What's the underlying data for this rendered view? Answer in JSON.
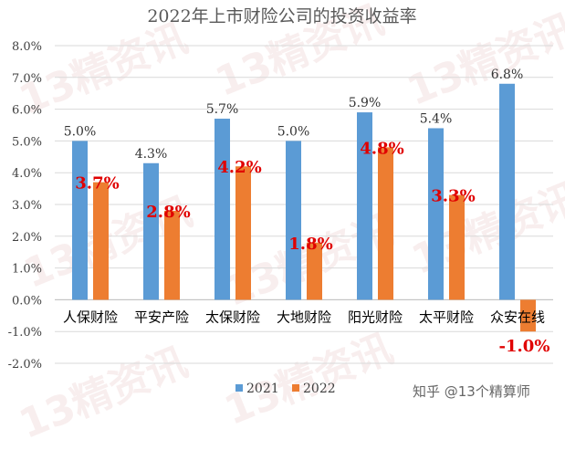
{
  "chart_data": {
    "type": "bar",
    "title": "2022年上市财险公司的投资收益率",
    "categories": [
      "人保财险",
      "平安产险",
      "太保财险",
      "大地财险",
      "阳光财险",
      "太平财险",
      "众安在线"
    ],
    "series": [
      {
        "name": "2021",
        "color": "#5b9bd5",
        "values": [
          5.0,
          4.3,
          5.7,
          5.0,
          5.9,
          5.4,
          6.8
        ],
        "labels": [
          "5.0%",
          "4.3%",
          "5.7%",
          "5.0%",
          "5.9%",
          "5.4%",
          "6.8%"
        ]
      },
      {
        "name": "2022",
        "color": "#ed7d31",
        "values": [
          3.7,
          2.8,
          4.2,
          1.8,
          4.8,
          3.3,
          -1.0
        ],
        "labels": [
          "3.7%",
          "2.8%",
          "4.2%",
          "1.8%",
          "4.8%",
          "3.3%",
          "-1.0%"
        ]
      }
    ],
    "ylim": [
      -2.0,
      8.0
    ],
    "yticks": [
      "-2.0%",
      "-1.0%",
      "0.0%",
      "1.0%",
      "2.0%",
      "3.0%",
      "4.0%",
      "5.0%",
      "6.0%",
      "7.0%",
      "8.0%"
    ],
    "grid": true,
    "legend_position": "bottom",
    "label_color_2022": "#e00000"
  },
  "credit": "知乎 @13个精算师",
  "watermark": "13精资讯"
}
